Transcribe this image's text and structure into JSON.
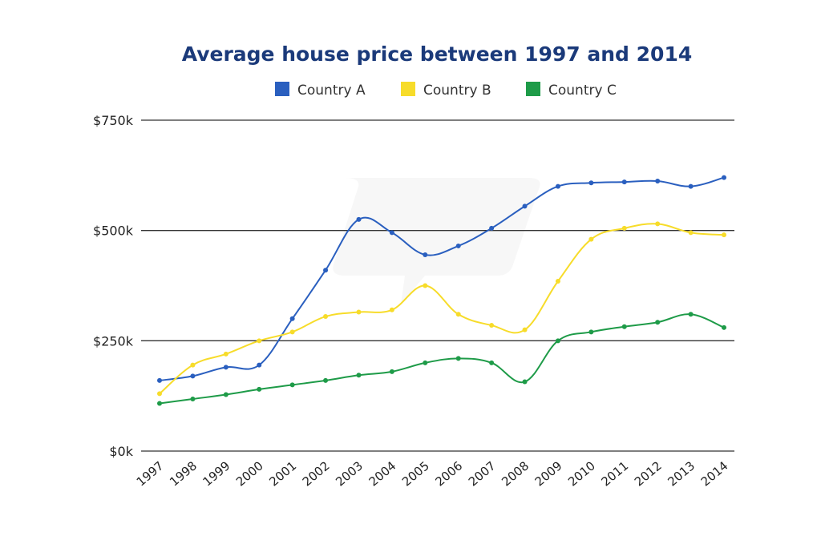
{
  "chart_data": {
    "type": "line",
    "title": "Average house price between 1997 and 2014",
    "xlabel": "",
    "ylabel": "",
    "categories": [
      "1997",
      "1998",
      "1999",
      "2000",
      "2001",
      "2002",
      "2003",
      "2004",
      "2005",
      "2006",
      "2007",
      "2008",
      "2009",
      "2010",
      "2011",
      "2012",
      "2013",
      "2014"
    ],
    "ylim": [
      0,
      750000
    ],
    "yticks": [
      0,
      250000,
      500000,
      750000
    ],
    "ytick_labels": [
      "$0k",
      "$250k",
      "$500k",
      "$750k"
    ],
    "grid": true,
    "legend_position": "top-center",
    "series": [
      {
        "name": "Country A",
        "color": "#2a5fbf",
        "values": [
          160000,
          170000,
          190000,
          195000,
          300000,
          410000,
          525000,
          495000,
          445000,
          465000,
          505000,
          555000,
          600000,
          608000,
          610000,
          612000,
          600000,
          620000
        ]
      },
      {
        "name": "Country B",
        "color": "#f7dc2a",
        "values": [
          130000,
          195000,
          220000,
          250000,
          270000,
          305000,
          315000,
          320000,
          375000,
          310000,
          285000,
          275000,
          385000,
          480000,
          505000,
          515000,
          495000,
          490000
        ]
      },
      {
        "name": "Country C",
        "color": "#1e9b48",
        "values": [
          108000,
          118000,
          128000,
          140000,
          150000,
          160000,
          172000,
          180000,
          200000,
          210000,
          200000,
          157000,
          250000,
          270000,
          282000,
          292000,
          310000,
          280000
        ]
      }
    ]
  }
}
